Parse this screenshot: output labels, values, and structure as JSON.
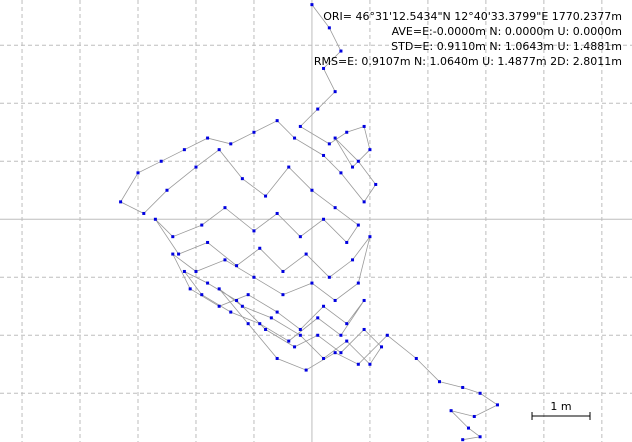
{
  "chart_data": {
    "type": "scatter",
    "info_lines": [
      "ORI= 46°31'12.5434\"N  12°40'33.3799\"E 1770.2377m",
      "AVE=E:-0.0000m N: 0.0000m U: 0.0000m",
      "STD=E: 0.9110m N: 1.0643m U: 1.4881m",
      "RMS=E: 0.9107m N: 1.0640m U: 1.4877m 2D: 2.8011m"
    ],
    "scale_bar": {
      "label": "1 m",
      "length": 1
    },
    "xlim": [
      -5.38,
      5.52
    ],
    "ylim": [
      -3.84,
      3.78
    ],
    "xticks": [
      -5,
      -4,
      -3,
      -2,
      -1,
      0,
      1,
      2,
      3,
      4,
      5
    ],
    "yticks": [
      -3,
      -2,
      -1,
      0,
      1,
      2,
      3
    ],
    "grid": true,
    "series": [
      {
        "color": "#0000e0",
        "line_color": "#9a9a9a",
        "x": [
          0.0,
          0.3,
          0.5,
          0.2,
          0.4,
          0.1,
          -0.2,
          0.3,
          0.6,
          0.9,
          1.0,
          0.7,
          0.4,
          0.8,
          1.1,
          0.9,
          0.5,
          0.2,
          -0.3,
          -0.6,
          -1.0,
          -1.4,
          -1.8,
          -2.2,
          -2.6,
          -3.0,
          -3.3,
          -2.9,
          -2.5,
          -2.0,
          -1.6,
          -1.2,
          -0.8,
          -0.4,
          0.0,
          0.4,
          0.8,
          0.6,
          0.2,
          -0.2,
          -0.6,
          -1.0,
          -1.5,
          -1.9,
          -2.4,
          -2.7,
          -2.3,
          -1.8,
          -1.3,
          -0.9,
          -0.5,
          -0.1,
          0.3,
          0.7,
          1.0,
          0.8,
          0.4,
          0.0,
          -0.5,
          -1.0,
          -1.5,
          -2.0,
          -2.4,
          -2.1,
          -1.6,
          -1.1,
          -0.6,
          -0.2,
          0.2,
          0.6,
          0.9,
          0.5,
          0.1,
          -0.4,
          -0.9,
          -1.4,
          -1.9,
          -2.2,
          -1.8,
          -1.3,
          -0.8,
          -0.3,
          0.1,
          0.5,
          0.9,
          1.2,
          1.0,
          0.6,
          0.2,
          -0.2,
          -0.7,
          -1.2,
          -1.6,
          -1.1,
          -0.6,
          -0.1,
          0.4,
          0.8,
          1.3,
          1.8,
          2.2,
          2.6,
          2.9,
          3.2,
          2.8,
          2.4,
          2.7,
          2.9,
          2.6
        ],
        "values": [
          3.7,
          3.3,
          2.9,
          2.6,
          2.2,
          1.9,
          1.6,
          1.3,
          1.5,
          1.6,
          1.2,
          0.9,
          1.4,
          1.0,
          0.6,
          0.3,
          0.8,
          1.1,
          1.4,
          1.7,
          1.5,
          1.3,
          1.4,
          1.2,
          1.0,
          0.8,
          0.3,
          0.1,
          0.5,
          0.9,
          1.2,
          0.7,
          0.4,
          0.9,
          0.5,
          0.2,
          -0.1,
          -0.4,
          0.0,
          -0.3,
          0.1,
          -0.2,
          0.2,
          -0.1,
          -0.3,
          0.0,
          -0.6,
          -0.4,
          -0.8,
          -0.5,
          -0.9,
          -0.6,
          -1.0,
          -0.7,
          -0.3,
          -1.1,
          -1.4,
          -1.1,
          -1.3,
          -1.0,
          -0.7,
          -0.9,
          -0.6,
          -1.2,
          -1.5,
          -1.3,
          -1.6,
          -1.9,
          -1.5,
          -1.8,
          -1.4,
          -2.0,
          -1.7,
          -2.1,
          -1.8,
          -1.6,
          -1.3,
          -0.9,
          -1.1,
          -1.4,
          -1.9,
          -2.2,
          -2.0,
          -2.3,
          -1.9,
          -2.2,
          -2.5,
          -2.1,
          -2.4,
          -2.0,
          -1.7,
          -1.5,
          -1.2,
          -1.8,
          -2.4,
          -2.6,
          -2.3,
          -2.5,
          -2.0,
          -2.4,
          -2.8,
          -2.9,
          -3.0,
          -3.2,
          -3.4,
          -3.3,
          -3.6,
          -3.75,
          -3.8
        ]
      }
    ]
  }
}
